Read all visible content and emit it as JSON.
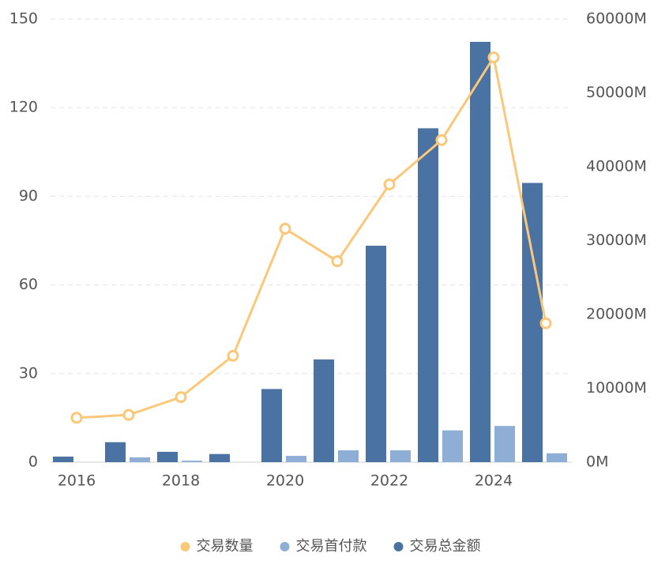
{
  "chart_data": {
    "type": "bar",
    "categories": [
      "2016",
      null,
      "2018",
      null,
      "2020",
      null,
      "2022",
      null,
      "2024",
      null
    ],
    "series": [
      {
        "name": "交易数量",
        "type": "line",
        "color": "#fac878",
        "values": [
          15,
          16,
          22,
          36,
          79,
          68,
          94,
          109,
          137,
          47
        ]
      },
      {
        "name": "交易首付款",
        "type": "bar",
        "axis": "y2",
        "color": "#8eaed6",
        "values": [
          0,
          650,
          200,
          0,
          850,
          1600,
          1600,
          4300,
          4900,
          1200
        ]
      },
      {
        "name": "交易总金额",
        "type": "bar",
        "axis": "y2",
        "color": "#4a72a3",
        "values": [
          750,
          2700,
          1400,
          1100,
          9900,
          13900,
          29300,
          45200,
          56900,
          37800
        ]
      }
    ],
    "ylim": [
      0,
      150
    ],
    "yticks": [
      0,
      30,
      60,
      90,
      120,
      150
    ],
    "y2lim": [
      0,
      60000
    ],
    "y2ticks": [
      {
        "value": 0,
        "label": "0M"
      },
      {
        "value": 10000,
        "label": "10000M"
      },
      {
        "value": 20000,
        "label": "20000M"
      },
      {
        "value": 30000,
        "label": "30000M"
      },
      {
        "value": 40000,
        "label": "40000M"
      },
      {
        "value": 50000,
        "label": "50000M"
      },
      {
        "value": 60000,
        "label": "60000M"
      }
    ],
    "grid": true,
    "legend": "bottom"
  }
}
